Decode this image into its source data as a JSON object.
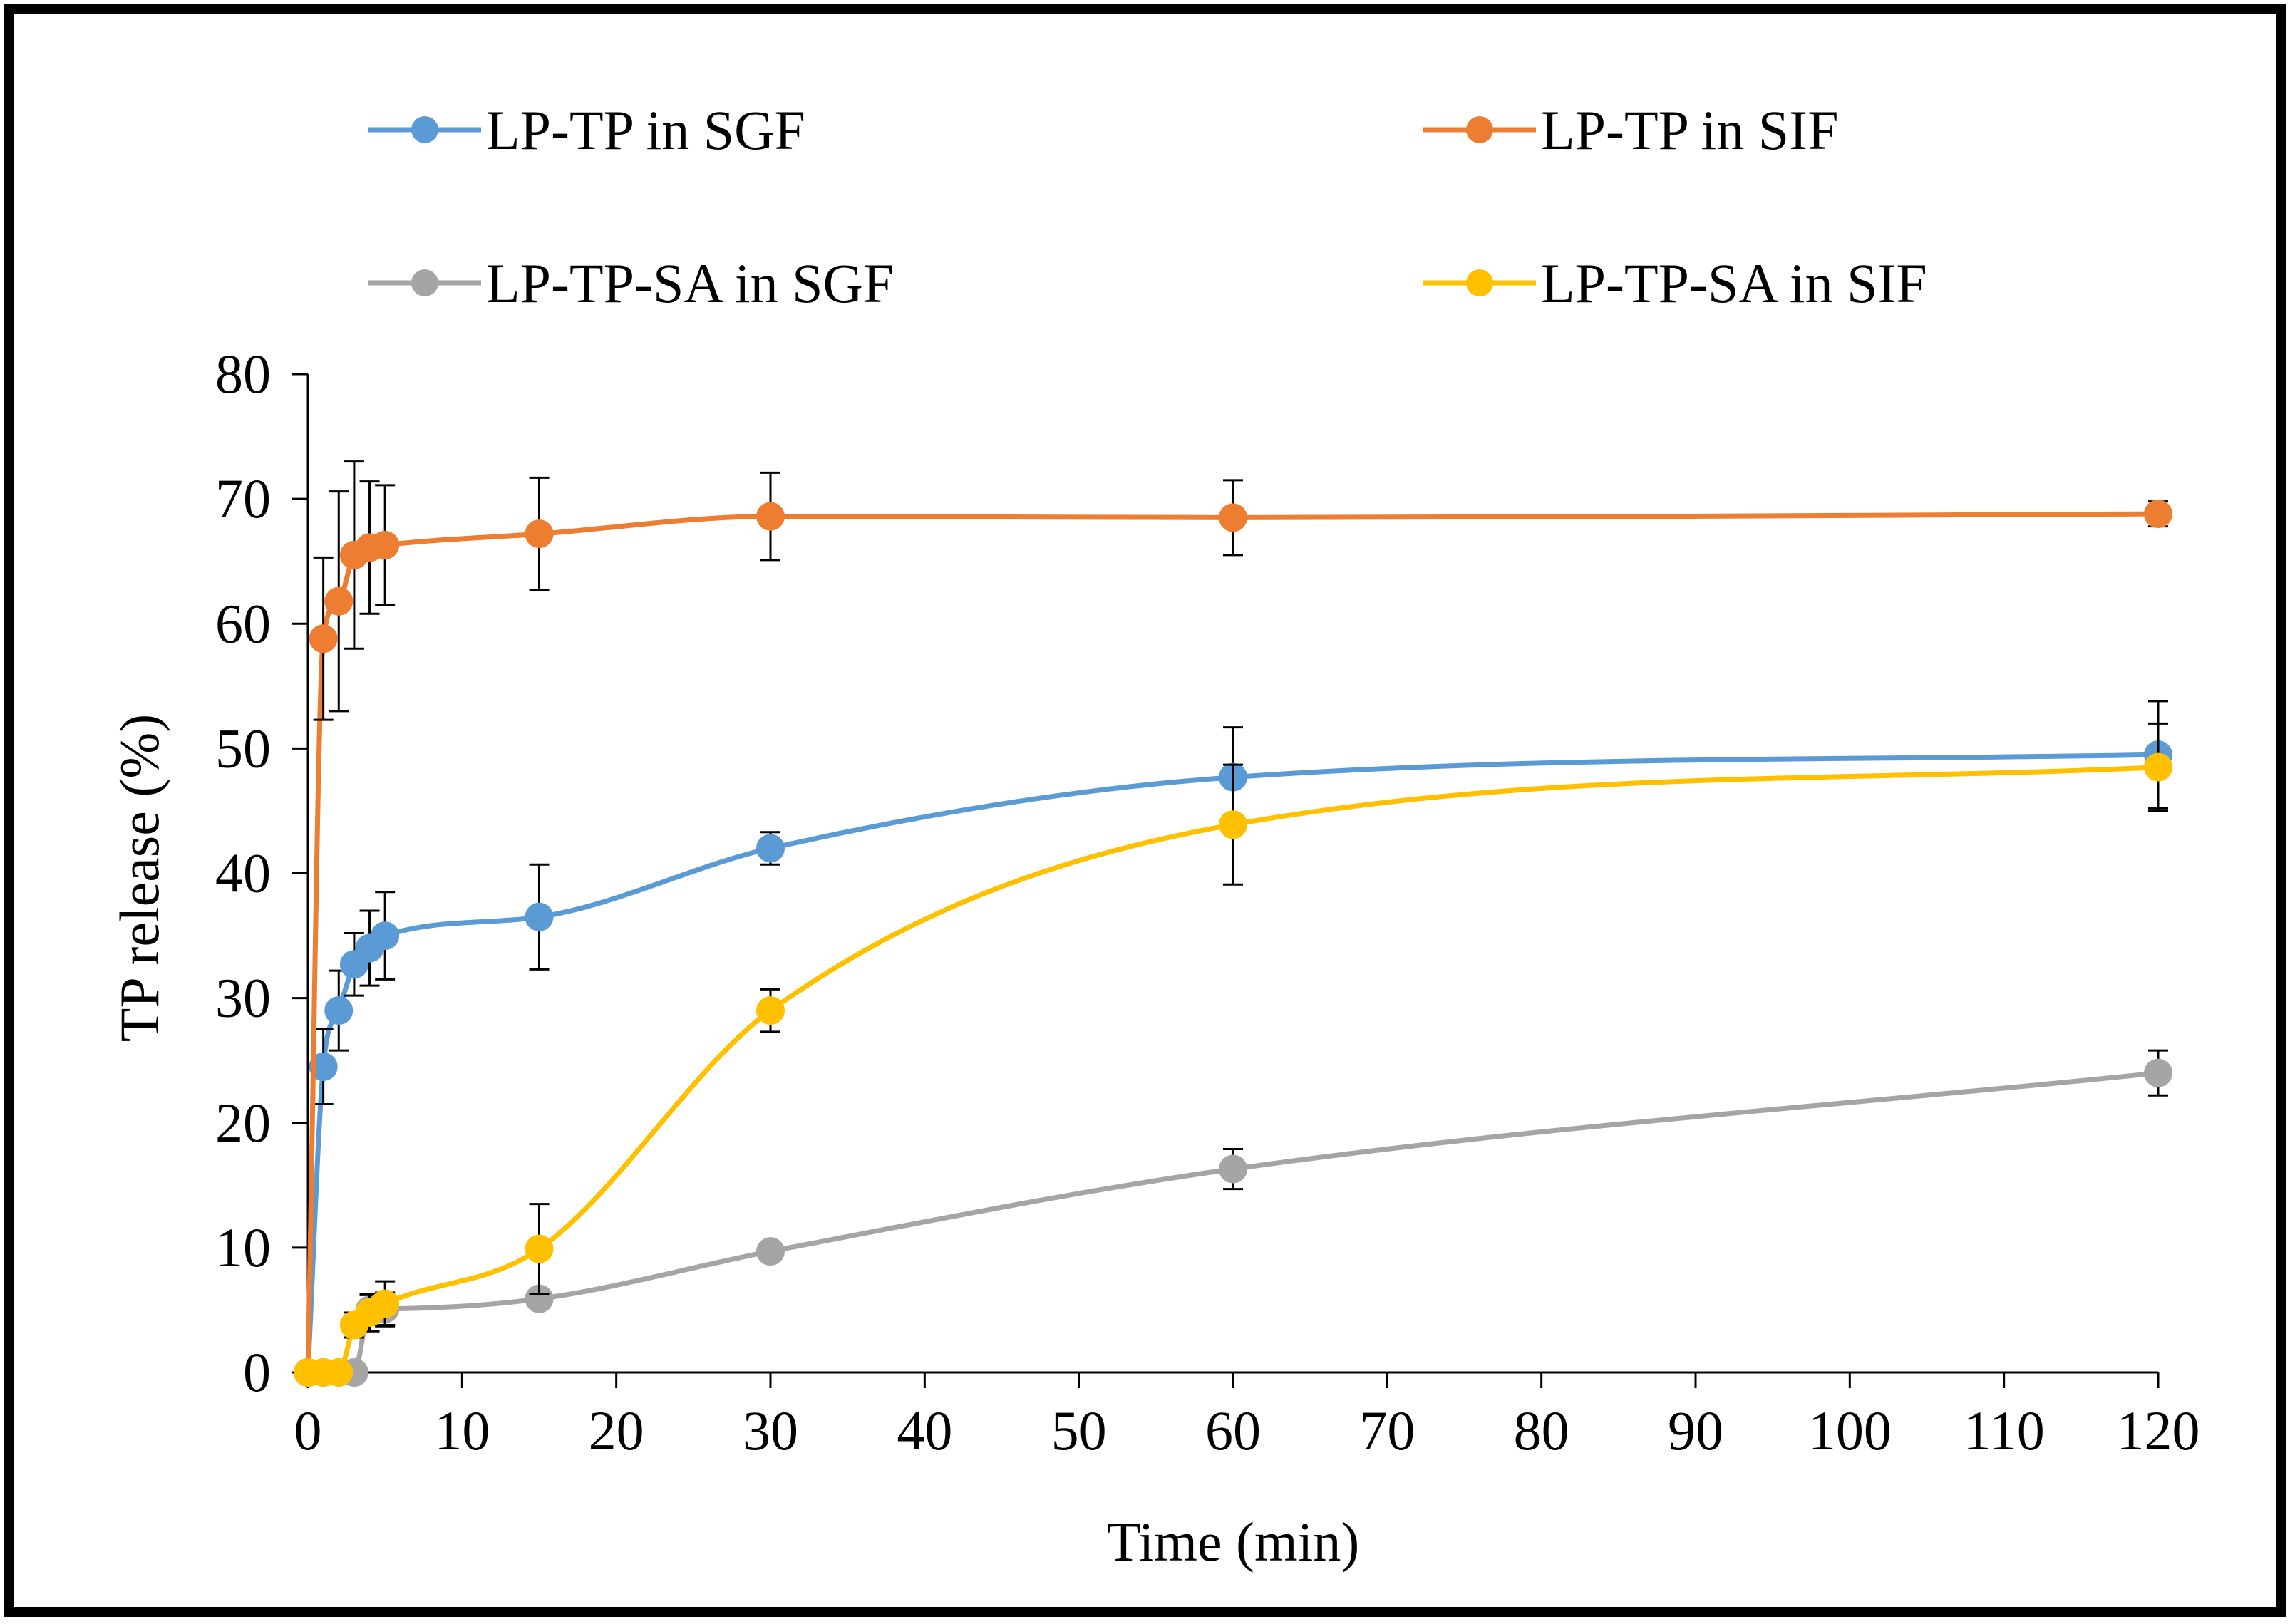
{
  "chart_data": {
    "type": "line",
    "title": "",
    "xlabel": "Time (min)",
    "ylabel": "TP release (%)",
    "xlim": [
      0,
      120
    ],
    "ylim": [
      0,
      80
    ],
    "xticks": [
      0,
      10,
      20,
      30,
      40,
      50,
      60,
      70,
      80,
      90,
      100,
      110,
      120
    ],
    "yticks": [
      0,
      10,
      20,
      30,
      40,
      50,
      60,
      70,
      80
    ],
    "x_tick_labels": [
      "0",
      "10",
      "20",
      "30",
      "40",
      "50",
      "60",
      "70",
      "80",
      "90",
      "100",
      "110",
      "120"
    ],
    "y_tick_labels": [
      "0",
      "10",
      "20",
      "30",
      "40",
      "50",
      "60",
      "70",
      "80"
    ],
    "grid": false,
    "legend_position": "top",
    "series": [
      {
        "name": "LP-TP in SGF",
        "color": "#5B9BD5",
        "x": [
          0,
          1,
          2,
          3,
          4,
          5,
          15,
          30,
          60,
          120
        ],
        "values": [
          0,
          24.5,
          29,
          32.7,
          34,
          35,
          36.5,
          42,
          47.7,
          49.5
        ],
        "errors": [
          0,
          3,
          3.2,
          2.5,
          3,
          3.5,
          4.2,
          1.3,
          4,
          4.3
        ]
      },
      {
        "name": "LP-TP in SIF",
        "color": "#ED7D31",
        "x": [
          0,
          1,
          2,
          3,
          4,
          5,
          15,
          30,
          60,
          120
        ],
        "values": [
          0,
          58.8,
          61.8,
          65.5,
          66.1,
          66.3,
          67.2,
          68.6,
          68.5,
          68.8
        ],
        "errors": [
          0,
          6.5,
          8.8,
          7.5,
          5.3,
          4.8,
          4.5,
          3.5,
          3,
          1
        ]
      },
      {
        "name": "LP-TP-SA in SGF",
        "color": "#A5A5A5",
        "x": [
          0,
          1,
          2,
          3,
          4,
          5,
          15,
          30,
          60,
          120
        ],
        "values": [
          0,
          0,
          0,
          0,
          5,
          5.1,
          5.9,
          9.7,
          16.3,
          24
        ],
        "errors": [
          0,
          0,
          0,
          0,
          1.2,
          1.3,
          0,
          0,
          1.6,
          1.8
        ]
      },
      {
        "name": "LP-TP-SA in SIF",
        "color": "#FFC000",
        "x": [
          0,
          1,
          2,
          3,
          4,
          5,
          15,
          30,
          60,
          120
        ],
        "values": [
          0,
          0,
          0,
          3.8,
          4.8,
          5.5,
          9.9,
          29,
          43.9,
          48.5
        ],
        "errors": [
          0,
          0,
          0,
          1,
          1.5,
          1.8,
          3.6,
          1.7,
          4.8,
          3.5
        ]
      }
    ]
  }
}
